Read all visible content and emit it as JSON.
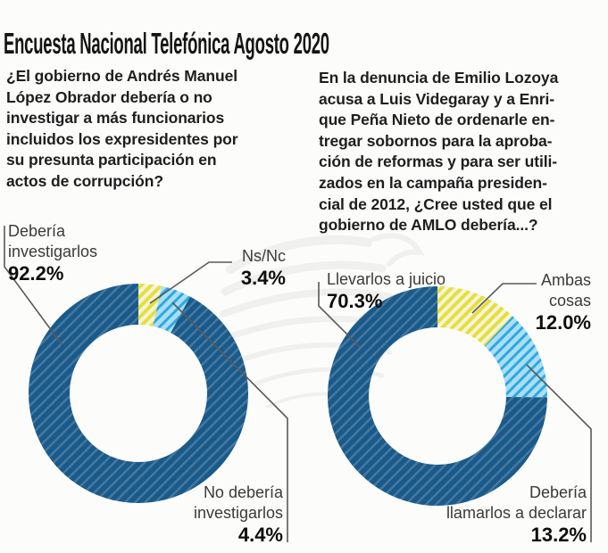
{
  "title": "Encuesta Nacional Telefónica Agosto 2020",
  "palette": {
    "darkblue": {
      "base": "#1a5a8b",
      "stripe": "#46799f",
      "stripe_width": 2.4
    },
    "lightblue": {
      "base": "#aadef6",
      "stripe": "#2ea9dc",
      "stripe_width": 3.0
    },
    "yellow": {
      "base": "#f7f4da",
      "stripe": "#e5df3d",
      "stripe_width": 4.0
    }
  },
  "leader_line_color": "#58595b",
  "decor": {
    "watermark_icon": "eagle-watermark",
    "watermark_color": "#e8e8e6"
  },
  "chart_data": [
    {
      "type": "donut",
      "title": "¿El gobierno de Andrés Manuel López Obrador debería o no investigar a más funcionarios incluidos los expresidentes por su presunta participación en actos de corrupción?",
      "question_display": "¿El gobierno de Andrés Manuel\nLópez Obrador debería o no\ninvestigar a más funcionarios\nincluidos los expresidentes por\nsu presunta participación en\nactos de corrupción?",
      "units": "%",
      "start_angle": "12 o'clock",
      "clockwise": true,
      "segments": [
        {
          "label": "Ns/Nc",
          "value": 3.4,
          "color": "yellow"
        },
        {
          "label": "No debería investigarlos",
          "value": 4.4,
          "color": "lightblue"
        },
        {
          "label": "Debería investigarlos",
          "value": 92.2,
          "color": "darkblue"
        }
      ],
      "callouts": [
        {
          "lines": [
            "Debería",
            "investigarlos"
          ],
          "pct": "92.2%"
        },
        {
          "lines": [
            "Ns/Nc"
          ],
          "pct": "3.4%"
        },
        {
          "lines": [
            "No debería",
            "investigarlos"
          ],
          "pct": "4.4%"
        }
      ]
    },
    {
      "type": "donut",
      "title": "En la denuncia de Emilio Lozoya acusa a Luis Videgaray y a Enrique Peña Nieto de ordenarle entregar sobornos para la aprobación de reformas y para ser utilizados en la campaña presidencial de 2012, ¿Cree usted que el gobierno de AMLO debería...?",
      "question_display": "En la denuncia de Emilio Lozoya\nacusa a Luis Videgaray y a Enri-\nque Peña Nieto de ordenarle en-\ntregar sobornos para la aproba-\nción de reformas y para ser utili-\nzados en la campaña presiden-\ncial de 2012, ¿Cree usted que el\ngobierno de AMLO debería...?",
      "units": "%",
      "start_angle": "12 o'clock",
      "clockwise": true,
      "segments": [
        {
          "label": "Ambas cosas",
          "value": 12.0,
          "color": "yellow"
        },
        {
          "label": "Debería llamarlos a declarar",
          "value": 13.2,
          "color": "lightblue"
        },
        {
          "label": "Llevarlos a juicio",
          "value": 70.3,
          "color": "darkblue"
        }
      ],
      "callouts": [
        {
          "lines": [
            "Llevarlos a juicio"
          ],
          "pct": "70.3%"
        },
        {
          "lines": [
            "Ambas",
            "cosas"
          ],
          "pct": "12.0%"
        },
        {
          "lines": [
            "Debería",
            "llamarlos a declarar"
          ],
          "pct": "13.2%"
        }
      ]
    }
  ]
}
